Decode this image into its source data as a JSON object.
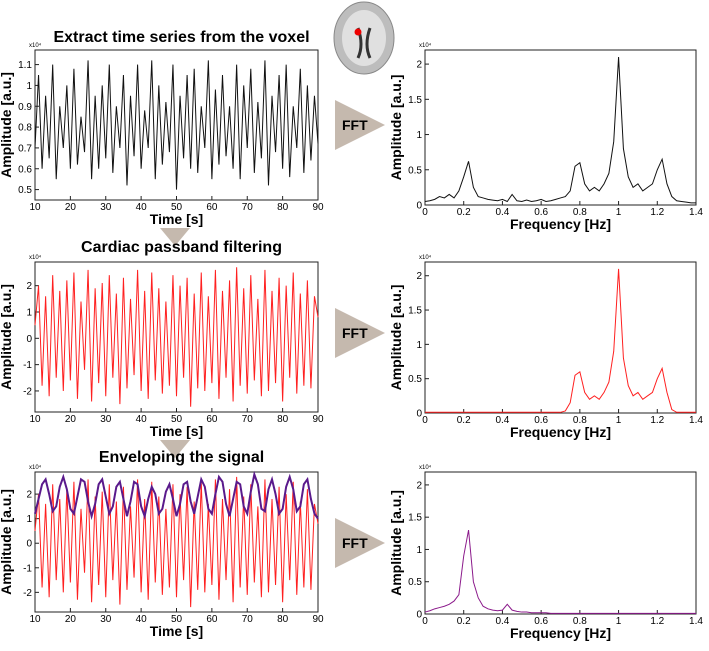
{
  "fft_labels": [
    "FFT",
    "FFT",
    "FFT"
  ],
  "chart_data": [
    {
      "type": "line",
      "title": "Extract time series from the voxel",
      "xlabel": "Time [s]",
      "ylabel": "Amplitude [a.u.]",
      "scale_label": "x10⁴",
      "x": [
        10,
        11,
        12,
        13,
        14,
        15,
        16,
        17,
        18,
        19,
        20,
        21,
        22,
        23,
        24,
        25,
        26,
        27,
        28,
        29,
        30,
        31,
        32,
        33,
        34,
        35,
        36,
        37,
        38,
        39,
        40,
        41,
        42,
        43,
        44,
        45,
        46,
        47,
        48,
        49,
        50,
        51,
        52,
        53,
        54,
        55,
        56,
        57,
        58,
        59,
        60,
        61,
        62,
        63,
        64,
        65,
        66,
        67,
        68,
        69,
        70,
        71,
        72,
        73,
        74,
        75,
        76,
        77,
        78,
        79,
        80,
        81,
        82,
        83,
        84,
        85,
        86,
        87,
        88,
        89,
        90
      ],
      "series": [
        {
          "color": "#111111",
          "values": [
            0.7,
            1.05,
            0.6,
            0.95,
            0.65,
            1.1,
            0.55,
            0.9,
            0.7,
            1.0,
            0.6,
            1.08,
            0.62,
            0.85,
            0.68,
            1.12,
            0.55,
            0.95,
            0.6,
            1.0,
            0.65,
            1.1,
            0.58,
            0.9,
            0.7,
            1.05,
            0.52,
            0.95,
            0.66,
            1.1,
            0.6,
            0.88,
            0.7,
            1.12,
            0.55,
            1.0,
            0.62,
            0.92,
            0.68,
            1.1,
            0.5,
            0.95,
            0.65,
            1.05,
            0.6,
            1.08,
            0.58,
            0.9,
            0.7,
            1.12,
            0.55,
            0.98,
            0.62,
            1.05,
            0.66,
            0.9,
            0.6,
            1.1,
            0.55,
            1.0,
            0.7,
            1.08,
            0.58,
            0.92,
            0.65,
            1.12,
            0.52,
            0.95,
            0.68,
            1.05,
            0.6,
            1.1,
            0.56,
            0.9,
            0.7,
            1.08,
            0.58,
            1.0,
            0.64,
            0.95,
            0.72
          ]
        }
      ],
      "xlim": [
        10,
        90
      ],
      "ylim": [
        0.45,
        1.17
      ],
      "xticks": [
        10,
        20,
        30,
        40,
        50,
        60,
        70,
        80,
        90
      ],
      "yticks": [
        0.5,
        0.6,
        0.7,
        0.8,
        0.9,
        1,
        1.1
      ]
    },
    {
      "type": "line",
      "xlabel": "Frequency [Hz]",
      "ylabel": "Amplitude [a.u.]",
      "scale_label": "x10⁴",
      "x": [
        0,
        0.025,
        0.05,
        0.075,
        0.1,
        0.125,
        0.15,
        0.175,
        0.2,
        0.225,
        0.25,
        0.275,
        0.3,
        0.325,
        0.35,
        0.375,
        0.4,
        0.425,
        0.45,
        0.475,
        0.5,
        0.525,
        0.55,
        0.575,
        0.6,
        0.625,
        0.65,
        0.675,
        0.7,
        0.725,
        0.75,
        0.775,
        0.8,
        0.825,
        0.85,
        0.875,
        0.9,
        0.925,
        0.95,
        0.975,
        1,
        1.025,
        1.05,
        1.075,
        1.1,
        1.125,
        1.15,
        1.175,
        1.2,
        1.225,
        1.25,
        1.275,
        1.3,
        1.325,
        1.35,
        1.375,
        1.4
      ],
      "series": [
        {
          "color": "#111111",
          "values": [
            0.05,
            0.06,
            0.08,
            0.12,
            0.1,
            0.15,
            0.1,
            0.2,
            0.4,
            0.62,
            0.25,
            0.12,
            0.1,
            0.08,
            0.07,
            0.06,
            0.08,
            0.05,
            0.15,
            0.06,
            0.05,
            0.07,
            0.05,
            0.06,
            0.08,
            0.05,
            0.06,
            0.08,
            0.1,
            0.12,
            0.2,
            0.55,
            0.6,
            0.3,
            0.2,
            0.25,
            0.2,
            0.3,
            0.45,
            0.9,
            2.1,
            0.8,
            0.4,
            0.25,
            0.3,
            0.2,
            0.25,
            0.3,
            0.5,
            0.65,
            0.3,
            0.12,
            0.06,
            0.05,
            0.04,
            0.03,
            0.03
          ]
        }
      ],
      "xlim": [
        0,
        1.4
      ],
      "ylim": [
        0,
        2.2
      ],
      "xticks": [
        0,
        0.2,
        0.4,
        0.6,
        0.8,
        1,
        1.2,
        1.4
      ],
      "yticks": [
        0,
        0.5,
        1,
        1.5,
        2
      ]
    },
    {
      "type": "line",
      "title": "Cardiac passband filtering",
      "xlabel": "Time [s]",
      "ylabel": "Amplitude [a.u.]",
      "scale_label": "x10⁴",
      "x": [
        10,
        11,
        12,
        13,
        14,
        15,
        16,
        17,
        18,
        19,
        20,
        21,
        22,
        23,
        24,
        25,
        26,
        27,
        28,
        29,
        30,
        31,
        32,
        33,
        34,
        35,
        36,
        37,
        38,
        39,
        40,
        41,
        42,
        43,
        44,
        45,
        46,
        47,
        48,
        49,
        50,
        51,
        52,
        53,
        54,
        55,
        56,
        57,
        58,
        59,
        60,
        61,
        62,
        63,
        64,
        65,
        66,
        67,
        68,
        69,
        70,
        71,
        72,
        73,
        74,
        75,
        76,
        77,
        78,
        79,
        80,
        81,
        82,
        83,
        84,
        85,
        86,
        87,
        88,
        89,
        90
      ],
      "series": [
        {
          "color": "#ff2020",
          "values": [
            0.5,
            2.0,
            -1.8,
            1.6,
            -2.2,
            2.4,
            -1.5,
            1.8,
            -2.0,
            2.2,
            -1.6,
            2.5,
            -2.3,
            1.4,
            -1.2,
            2.6,
            -2.4,
            1.9,
            -1.7,
            2.1,
            -2.2,
            2.4,
            -1.5,
            1.7,
            -2.5,
            2.3,
            -1.9,
            1.5,
            -1.4,
            2.6,
            -2.0,
            1.8,
            -2.3,
            2.5,
            -1.6,
            1.9,
            -2.1,
            1.4,
            -1.8,
            2.4,
            -2.2,
            2.0,
            -1.5,
            2.3,
            -2.6,
            1.7,
            -1.9,
            2.5,
            -2.0,
            1.6,
            -1.7,
            2.6,
            -2.3,
            1.8,
            -1.5,
            2.2,
            -2.4,
            2.7,
            -1.8,
            1.9,
            -2.1,
            2.4,
            -1.6,
            1.5,
            -2.2,
            2.6,
            -2.0,
            1.8,
            -1.7,
            2.3,
            -2.4,
            2.0,
            -1.5,
            2.5,
            -2.1,
            1.7,
            -1.8,
            2.2,
            -1.9,
            1.6,
            0.8
          ]
        }
      ],
      "xlim": [
        10,
        90
      ],
      "ylim": [
        -2.8,
        2.9
      ],
      "xticks": [
        10,
        20,
        30,
        40,
        50,
        60,
        70,
        80,
        90
      ],
      "yticks": [
        -2,
        -1,
        0,
        1,
        2
      ]
    },
    {
      "type": "line",
      "xlabel": "Frequency [Hz]",
      "ylabel": "Amplitude [a.u.]",
      "scale_label": "x10⁴",
      "x": [
        0,
        0.025,
        0.05,
        0.075,
        0.1,
        0.125,
        0.15,
        0.175,
        0.2,
        0.225,
        0.25,
        0.275,
        0.3,
        0.325,
        0.35,
        0.375,
        0.4,
        0.425,
        0.45,
        0.475,
        0.5,
        0.525,
        0.55,
        0.575,
        0.6,
        0.625,
        0.65,
        0.675,
        0.7,
        0.725,
        0.75,
        0.775,
        0.8,
        0.825,
        0.85,
        0.875,
        0.9,
        0.925,
        0.95,
        0.975,
        1,
        1.025,
        1.05,
        1.075,
        1.1,
        1.125,
        1.15,
        1.175,
        1.2,
        1.225,
        1.25,
        1.275,
        1.3,
        1.325,
        1.35,
        1.375,
        1.4
      ],
      "series": [
        {
          "color": "#ff2020",
          "values": [
            0.01,
            0.01,
            0.01,
            0.01,
            0.01,
            0.01,
            0.01,
            0.01,
            0.01,
            0.01,
            0.01,
            0.01,
            0.01,
            0.01,
            0.01,
            0.01,
            0.01,
            0.01,
            0.01,
            0.01,
            0.01,
            0.01,
            0.01,
            0.01,
            0.01,
            0.01,
            0.01,
            0.01,
            0.01,
            0.03,
            0.15,
            0.55,
            0.6,
            0.3,
            0.2,
            0.25,
            0.2,
            0.3,
            0.45,
            0.9,
            2.1,
            0.8,
            0.4,
            0.25,
            0.3,
            0.2,
            0.25,
            0.3,
            0.5,
            0.65,
            0.3,
            0.05,
            0.01,
            0.01,
            0.01,
            0.01,
            0.01
          ]
        }
      ],
      "xlim": [
        0,
        1.4
      ],
      "ylim": [
        0,
        2.2
      ],
      "xticks": [
        0,
        0.2,
        0.4,
        0.6,
        0.8,
        1,
        1.2,
        1.4
      ],
      "yticks": [
        0,
        0.5,
        1,
        1.5,
        2
      ]
    },
    {
      "type": "line",
      "title": "Enveloping the signal",
      "xlabel": "Time [s]",
      "ylabel": "Amplitude [a.u.]",
      "scale_label": "x10⁴",
      "x": [
        10,
        11,
        12,
        13,
        14,
        15,
        16,
        17,
        18,
        19,
        20,
        21,
        22,
        23,
        24,
        25,
        26,
        27,
        28,
        29,
        30,
        31,
        32,
        33,
        34,
        35,
        36,
        37,
        38,
        39,
        40,
        41,
        42,
        43,
        44,
        45,
        46,
        47,
        48,
        49,
        50,
        51,
        52,
        53,
        54,
        55,
        56,
        57,
        58,
        59,
        60,
        61,
        62,
        63,
        64,
        65,
        66,
        67,
        68,
        69,
        70,
        71,
        72,
        73,
        74,
        75,
        76,
        77,
        78,
        79,
        80,
        81,
        82,
        83,
        84,
        85,
        86,
        87,
        88,
        89,
        90
      ],
      "series": [
        {
          "color": "#ff2020",
          "values": [
            0.5,
            2.0,
            -1.8,
            1.6,
            -2.2,
            2.4,
            -1.5,
            1.8,
            -2.0,
            2.2,
            -1.6,
            2.5,
            -2.3,
            1.4,
            -1.2,
            2.6,
            -2.4,
            1.9,
            -1.7,
            2.1,
            -2.2,
            2.4,
            -1.5,
            1.7,
            -2.5,
            2.3,
            -1.9,
            1.5,
            -1.4,
            2.6,
            -2.0,
            1.8,
            -2.3,
            2.5,
            -1.6,
            1.9,
            -2.1,
            1.4,
            -1.8,
            2.4,
            -2.2,
            2.0,
            -1.5,
            2.3,
            -2.6,
            1.7,
            -1.9,
            2.5,
            -2.0,
            1.6,
            -1.7,
            2.6,
            -2.3,
            1.8,
            -1.5,
            2.2,
            -2.4,
            2.7,
            -1.8,
            1.9,
            -2.1,
            2.4,
            -1.6,
            1.5,
            -2.2,
            2.6,
            -2.0,
            1.8,
            -1.7,
            2.3,
            -2.4,
            2.0,
            -1.5,
            2.5,
            -2.1,
            1.7,
            -1.8,
            2.2,
            -1.9,
            1.6,
            0.8
          ]
        },
        {
          "color": "#5a1a8c",
          "values": [
            1.2,
            1.8,
            2.4,
            2.6,
            2.0,
            1.3,
            1.5,
            2.3,
            2.7,
            2.2,
            1.4,
            1.2,
            1.9,
            2.6,
            2.5,
            1.7,
            1.1,
            1.6,
            2.4,
            2.6,
            1.9,
            1.2,
            1.5,
            2.3,
            2.5,
            1.8,
            1.1,
            1.7,
            2.5,
            2.4,
            1.5,
            1.1,
            1.8,
            2.3,
            2.0,
            1.2,
            1.4,
            2.1,
            2.4,
            1.8,
            1.1,
            1.6,
            2.4,
            2.5,
            1.7,
            1.2,
            1.9,
            2.6,
            2.3,
            1.4,
            1.2,
            2.0,
            2.7,
            2.5,
            1.6,
            1.1,
            1.8,
            2.5,
            2.4,
            1.5,
            1.2,
            2.1,
            2.8,
            2.4,
            1.4,
            1.3,
            2.2,
            2.6,
            2.0,
            1.2,
            1.4,
            2.3,
            2.7,
            2.2,
            1.3,
            1.5,
            2.4,
            2.6,
            1.8,
            1.2,
            1.0
          ]
        }
      ],
      "xlim": [
        10,
        90
      ],
      "ylim": [
        -2.8,
        2.9
      ],
      "xticks": [
        10,
        20,
        30,
        40,
        50,
        60,
        70,
        80,
        90
      ],
      "yticks": [
        -2,
        -1,
        0,
        1,
        2
      ]
    },
    {
      "type": "line",
      "xlabel": "Frequency [Hz]",
      "ylabel": "Amplitude [a.u.]",
      "scale_label": "x10⁴",
      "x": [
        0,
        0.025,
        0.05,
        0.075,
        0.1,
        0.125,
        0.15,
        0.175,
        0.2,
        0.225,
        0.25,
        0.275,
        0.3,
        0.325,
        0.35,
        0.375,
        0.4,
        0.425,
        0.45,
        0.475,
        0.5,
        0.525,
        0.55,
        0.575,
        0.6,
        0.625,
        0.65,
        0.675,
        0.7,
        0.725,
        0.75,
        0.775,
        0.8,
        0.825,
        0.85,
        0.875,
        0.9,
        0.925,
        0.95,
        0.975,
        1,
        1.025,
        1.05,
        1.075,
        1.1,
        1.125,
        1.15,
        1.175,
        1.2,
        1.225,
        1.25,
        1.275,
        1.3,
        1.325,
        1.35,
        1.375,
        1.4
      ],
      "series": [
        {
          "color": "#8b1a8b",
          "values": [
            0.03,
            0.05,
            0.08,
            0.1,
            0.12,
            0.15,
            0.2,
            0.3,
            0.9,
            1.3,
            0.5,
            0.25,
            0.12,
            0.08,
            0.06,
            0.05,
            0.06,
            0.15,
            0.06,
            0.04,
            0.03,
            0.03,
            0.02,
            0.02,
            0.02,
            0.02,
            0.01,
            0.01,
            0.01,
            0.01,
            0.01,
            0.01,
            0.01,
            0.01,
            0.01,
            0.01,
            0.01,
            0.01,
            0.01,
            0.01,
            0.01,
            0.01,
            0.01,
            0.01,
            0.01,
            0.01,
            0.01,
            0.01,
            0.01,
            0.01,
            0.01,
            0.01,
            0.01,
            0.01,
            0.01,
            0.01,
            0.01
          ]
        }
      ],
      "xlim": [
        0,
        1.4
      ],
      "ylim": [
        0,
        2.2
      ],
      "xticks": [
        0,
        0.2,
        0.4,
        0.6,
        0.8,
        1,
        1.2,
        1.4
      ],
      "yticks": [
        0,
        0.5,
        1,
        1.5,
        2
      ]
    }
  ]
}
